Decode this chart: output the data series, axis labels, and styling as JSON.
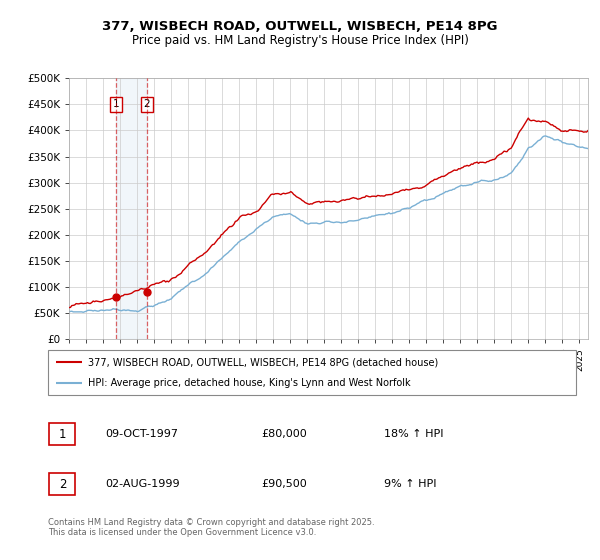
{
  "title1": "377, WISBECH ROAD, OUTWELL, WISBECH, PE14 8PG",
  "title2": "Price paid vs. HM Land Registry's House Price Index (HPI)",
  "ylim": [
    0,
    500000
  ],
  "yticks": [
    0,
    50000,
    100000,
    150000,
    200000,
    250000,
    300000,
    350000,
    400000,
    450000,
    500000
  ],
  "ytick_labels": [
    "£0",
    "£50K",
    "£100K",
    "£150K",
    "£200K",
    "£250K",
    "£300K",
    "£350K",
    "£400K",
    "£450K",
    "£500K"
  ],
  "xlim_start": 1995.0,
  "xlim_end": 2025.5,
  "transactions": [
    {
      "label": "1",
      "date": "09-OCT-1997",
      "price": 80000,
      "year": 1997.77,
      "hpi_pct": "18%"
    },
    {
      "label": "2",
      "date": "02-AUG-1999",
      "price": 90500,
      "year": 1999.58,
      "hpi_pct": "9%"
    }
  ],
  "legend_line1": "377, WISBECH ROAD, OUTWELL, WISBECH, PE14 8PG (detached house)",
  "legend_line2": "HPI: Average price, detached house, King's Lynn and West Norfolk",
  "footer": "Contains HM Land Registry data © Crown copyright and database right 2025.\nThis data is licensed under the Open Government Licence v3.0.",
  "red_color": "#cc0000",
  "blue_color": "#7ab0d4",
  "background_color": "#ffffff",
  "plot_bg_color": "#ffffff",
  "grid_color": "#cccccc"
}
